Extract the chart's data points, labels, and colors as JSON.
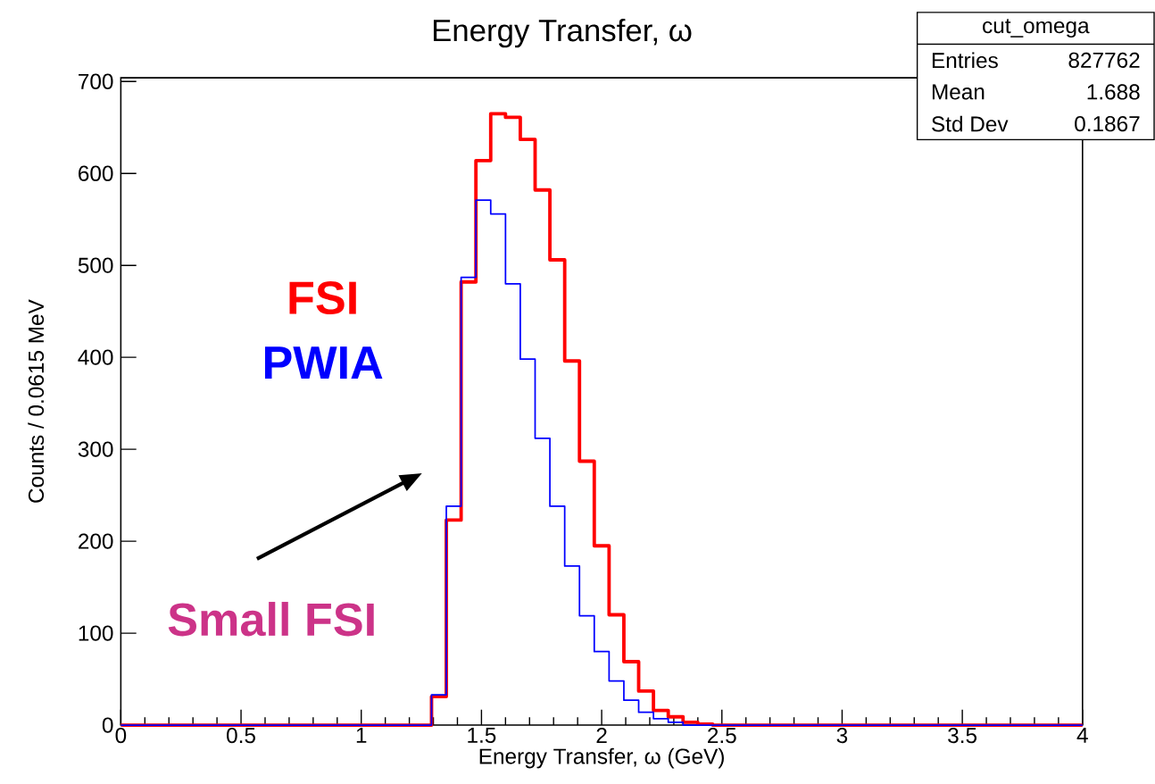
{
  "chart_data": {
    "type": "histogram",
    "title": "Energy Transfer, ω",
    "xlabel": "Energy Transfer, ω (GeV)",
    "ylabel": "Counts / 0.0615 MeV",
    "bins": [
      0,
      0.0615,
      0.1231,
      0.1846,
      0.2462,
      0.3077,
      0.3692,
      0.4308,
      0.4923,
      0.5538,
      0.6154,
      0.6769,
      0.7385,
      0.8,
      0.8615,
      0.9231,
      0.9846,
      1.0462,
      1.1077,
      1.1692,
      1.2308,
      1.2923,
      1.3538,
      1.4154,
      1.4769,
      1.5385,
      1.6,
      1.6615,
      1.7231,
      1.7846,
      1.8462,
      1.9077,
      1.9692,
      2.0308,
      2.0923,
      2.1538,
      2.2154,
      2.2769,
      2.3385,
      2.4,
      2.4615,
      2.5231,
      2.5846,
      2.6462,
      2.7077,
      2.7692,
      2.8308,
      2.8923,
      2.9538,
      3.0154,
      3.0769,
      3.1385,
      3.2,
      3.2615,
      3.3231,
      3.3846,
      3.4462,
      3.5077,
      3.5692,
      3.6308,
      3.6923,
      3.7538,
      3.8154,
      3.8769,
      3.9385,
      4
    ],
    "series": [
      {
        "name": "FSI",
        "color": "#ff0000",
        "values": [
          0,
          0,
          0,
          0,
          0,
          0,
          0,
          0,
          0,
          0,
          0,
          0,
          0,
          0,
          0,
          0,
          0,
          0,
          0,
          0,
          0,
          31,
          223,
          482,
          614,
          665,
          661,
          637,
          582,
          506,
          396,
          287,
          195,
          120,
          69,
          37,
          16,
          9,
          3,
          1,
          0,
          0,
          0,
          0,
          0,
          0,
          0,
          0,
          0,
          0,
          0,
          0,
          0,
          0,
          0,
          0,
          0,
          0,
          0,
          0,
          0,
          0,
          0,
          0,
          0
        ]
      },
      {
        "name": "PWIA",
        "color": "#0000ff",
        "values": [
          0,
          0,
          0,
          0,
          0,
          0,
          0,
          0,
          0,
          0,
          0,
          0,
          0,
          0,
          0,
          0,
          0,
          0,
          0,
          0,
          0,
          33,
          238,
          487,
          571,
          556,
          480,
          398,
          312,
          238,
          173,
          119,
          80,
          48,
          27,
          14,
          7,
          3,
          0,
          0,
          0,
          0,
          0,
          0,
          0,
          0,
          0,
          0,
          0,
          0,
          0,
          0,
          0,
          0,
          0,
          0,
          0,
          0,
          0,
          0,
          0,
          0,
          0,
          0,
          0
        ]
      }
    ],
    "xlim": [
      0,
      4
    ],
    "ylim": [
      0,
      704
    ],
    "xticks": [
      0,
      0.5,
      1,
      1.5,
      2,
      2.5,
      3,
      3.5,
      4
    ],
    "yticks": [
      0,
      100,
      200,
      300,
      400,
      500,
      600,
      700
    ],
    "legend": "left",
    "grid": false,
    "annotations": [
      "Small FSI",
      "cut_omega",
      "Entries",
      "827762",
      "Mean",
      "1.688",
      "Std Dev",
      "0.1867"
    ]
  }
}
